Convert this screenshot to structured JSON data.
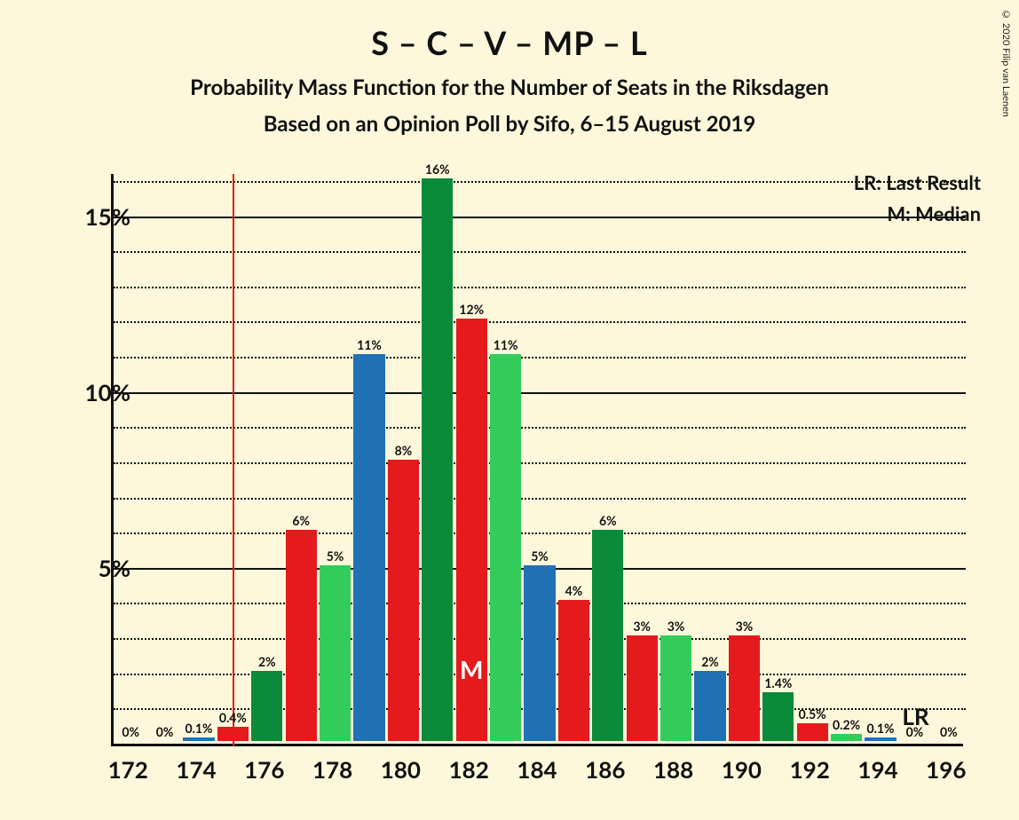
{
  "copyright": "© 2020 Filip van Laenen",
  "title": "S – C – V – MP – L",
  "subtitle1": "Probability Mass Function for the Number of Seats in the Riksdagen",
  "subtitle2": "Based on an Opinion Poll by Sifo, 6–15 August 2019",
  "legend": {
    "lr": "LR: Last Result",
    "m": "M: Median"
  },
  "lr_marker": "LR",
  "chart": {
    "type": "bar",
    "background_color": "#fdf8db",
    "axis_color": "#111111",
    "grid_minor_color": "#111111",
    "grid_major_color": "#111111",
    "lr_line_color": "#e41a1c",
    "lr_position": 175,
    "median_bar_index": 10,
    "median_label": "M",
    "lr_marker_x": 195,
    "ylim": [
      0,
      16.2
    ],
    "y_major_ticks": [
      5,
      10,
      15
    ],
    "y_major_labels": [
      "5%",
      "10%",
      "15%"
    ],
    "y_minor_step": 1,
    "xlim": [
      171.5,
      196.5
    ],
    "x_ticks": [
      172,
      174,
      176,
      178,
      180,
      182,
      184,
      186,
      188,
      190,
      192,
      194,
      196
    ],
    "colors": {
      "blue": "#2171b5",
      "red": "#e41a1c",
      "green": "#33cc5a",
      "dark": "#0b8a3a"
    },
    "bar_width": 0.92,
    "bars": [
      {
        "x": 172,
        "value": 0,
        "label": "0%",
        "color": "red"
      },
      {
        "x": 173,
        "value": 0,
        "label": "0%",
        "color": "green"
      },
      {
        "x": 174,
        "value": 0.1,
        "label": "0.1%",
        "color": "blue"
      },
      {
        "x": 175,
        "value": 0.4,
        "label": "0.4%",
        "color": "red"
      },
      {
        "x": 176,
        "value": 2,
        "label": "2%",
        "color": "dark"
      },
      {
        "x": 177,
        "value": 6,
        "label": "6%",
        "color": "red"
      },
      {
        "x": 178,
        "value": 5,
        "label": "5%",
        "color": "green"
      },
      {
        "x": 179,
        "value": 11,
        "label": "11%",
        "color": "blue"
      },
      {
        "x": 180,
        "value": 8,
        "label": "8%",
        "color": "red"
      },
      {
        "x": 181,
        "value": 16,
        "label": "16%",
        "color": "dark"
      },
      {
        "x": 182,
        "value": 12,
        "label": "12%",
        "color": "red"
      },
      {
        "x": 183,
        "value": 11,
        "label": "11%",
        "color": "green"
      },
      {
        "x": 184,
        "value": 5,
        "label": "5%",
        "color": "blue"
      },
      {
        "x": 185,
        "value": 4,
        "label": "4%",
        "color": "red"
      },
      {
        "x": 186,
        "value": 6,
        "label": "6%",
        "color": "dark"
      },
      {
        "x": 187,
        "value": 3,
        "label": "3%",
        "color": "red"
      },
      {
        "x": 188,
        "value": 3,
        "label": "3%",
        "color": "green"
      },
      {
        "x": 189,
        "value": 2,
        "label": "2%",
        "color": "blue"
      },
      {
        "x": 190,
        "value": 3,
        "label": "3%",
        "color": "red"
      },
      {
        "x": 191,
        "value": 1.4,
        "label": "1.4%",
        "color": "dark"
      },
      {
        "x": 192,
        "value": 0.5,
        "label": "0.5%",
        "color": "red"
      },
      {
        "x": 193,
        "value": 0.2,
        "label": "0.2%",
        "color": "green"
      },
      {
        "x": 194,
        "value": 0.1,
        "label": "0.1%",
        "color": "blue"
      },
      {
        "x": 195,
        "value": 0,
        "label": "0%",
        "color": "red"
      },
      {
        "x": 196,
        "value": 0,
        "label": "0%",
        "color": "green"
      }
    ]
  }
}
